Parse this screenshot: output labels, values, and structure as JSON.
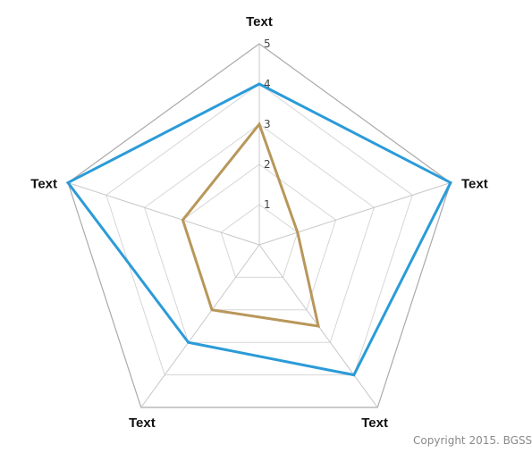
{
  "chart_data": {
    "type": "radar",
    "axes": [
      "Text",
      "Text",
      "Text",
      "Text",
      "Text"
    ],
    "rlim": [
      0,
      5
    ],
    "ticks": [
      "1",
      "2",
      "3",
      "4",
      "5"
    ],
    "grid": true,
    "series": [
      {
        "values": [
          4,
          5,
          4,
          3,
          5
        ],
        "color": "#2b9bd8"
      },
      {
        "values": [
          3,
          1,
          2.5,
          2,
          2
        ],
        "color": "#b8975a"
      }
    ]
  },
  "footer": {
    "copyright": "Copyright 2015. BGSS"
  },
  "colors": {
    "grid_outer": "#aaaaaa",
    "grid_inner": "#d6d6d6",
    "spoke": "#c8c8c8"
  }
}
